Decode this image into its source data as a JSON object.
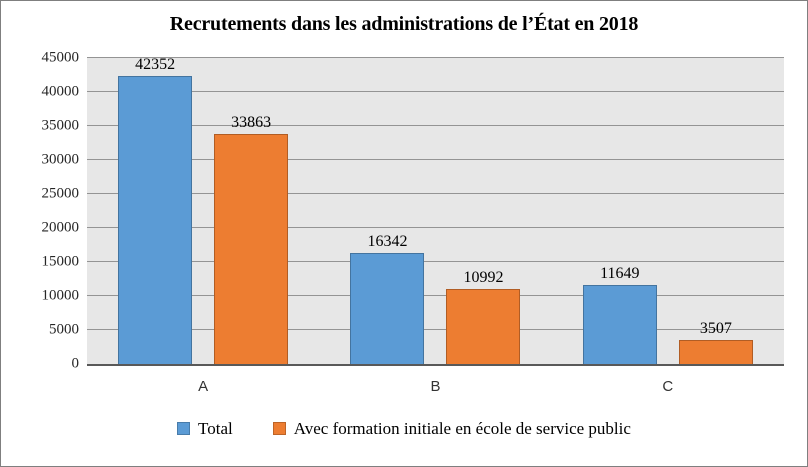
{
  "chart_data": {
    "type": "bar",
    "title": "Recrutements dans les administrations de l’État en 2018",
    "categories": [
      "A",
      "B",
      "C"
    ],
    "series": [
      {
        "name": "Total",
        "color": "#5b9bd5",
        "values": [
          42352,
          16342,
          11649
        ]
      },
      {
        "name": "Avec formation initiale en école de service public",
        "color": "#ed7d31",
        "values": [
          33863,
          10992,
          3507
        ]
      }
    ],
    "ylim": [
      0,
      45000
    ],
    "yticks": [
      0,
      5000,
      10000,
      15000,
      20000,
      25000,
      30000,
      35000,
      40000,
      45000
    ],
    "xlabel": "",
    "ylabel": "",
    "grid": true,
    "data_labels": true,
    "legend_position": "bottom",
    "colors": {
      "plot_background": "#e7e7e7",
      "gridline": "#949494",
      "axis_line": "#595959",
      "chart_border": "#7f7f7f",
      "text": "#000000"
    }
  }
}
